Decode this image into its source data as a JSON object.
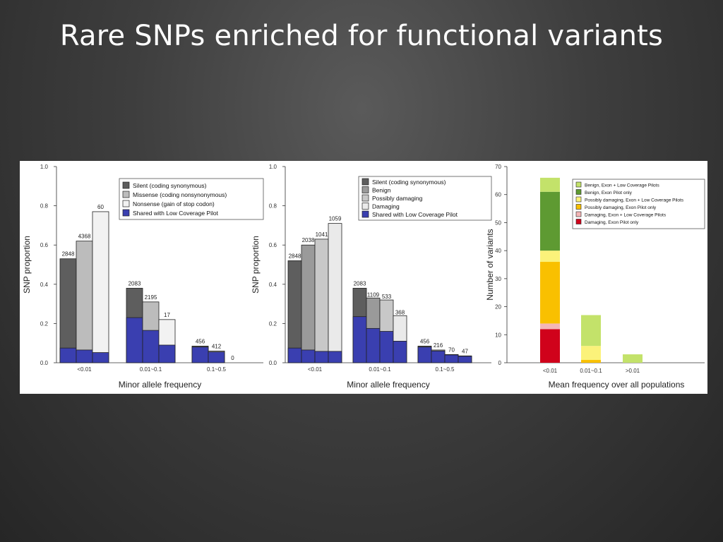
{
  "slide": {
    "title": "Rare SNPs enriched for functional variants"
  },
  "chart_data": [
    {
      "type": "bar",
      "ylabel": "SNP proportion",
      "xlabel": "Minor allele frequency",
      "ylim": [
        0,
        1.0
      ],
      "yticks": [
        "0.0",
        "0.2",
        "0.4",
        "0.6",
        "0.8",
        "1.0"
      ],
      "categories": [
        "<0.01",
        "0.01~0.1",
        "0.1~0.5"
      ],
      "series": [
        {
          "name": "Silent (coding synonymous)",
          "color": "#5e5e5e",
          "values": [
            0.53,
            0.38,
            0.085
          ],
          "shared": [
            0.075,
            0.23,
            0.08
          ],
          "labels": [
            "2848",
            "2083",
            "456"
          ]
        },
        {
          "name": "Missense (coding nonsynonymous)",
          "color": "#bcbcbc",
          "values": [
            0.62,
            0.31,
            0.06
          ],
          "shared": [
            0.065,
            0.165,
            0.055
          ],
          "labels": [
            "4368",
            "2195",
            "412"
          ]
        },
        {
          "name": "Nonsense (gain of stop codon)",
          "color": "#f2f2f2",
          "values": [
            0.77,
            0.22,
            0.0
          ],
          "shared": [
            0.052,
            0.09,
            0.0
          ],
          "labels": [
            "60",
            "17",
            "0"
          ]
        }
      ],
      "shared_series": {
        "name": "Shared with Low Coverage Pilot",
        "color": "#3a3fb0"
      },
      "legend": "top-right"
    },
    {
      "type": "bar",
      "ylabel": "SNP proportion",
      "xlabel": "Minor allele frequency",
      "ylim": [
        0,
        1.0
      ],
      "yticks": [
        "0.0",
        "0.2",
        "0.4",
        "0.6",
        "0.8",
        "1.0"
      ],
      "categories": [
        "<0.01",
        "0.01~0.1",
        "0.1~0.5"
      ],
      "series": [
        {
          "name": "Silent (coding synonymous)",
          "color": "#5e5e5e",
          "values": [
            0.52,
            0.38,
            0.085
          ],
          "shared": [
            0.075,
            0.235,
            0.08
          ],
          "labels": [
            "2848",
            "2083",
            "456"
          ]
        },
        {
          "name": "Benign",
          "color": "#9a9a9a",
          "values": [
            0.6,
            0.33,
            0.065
          ],
          "shared": [
            0.065,
            0.175,
            0.06
          ],
          "labels": [
            "2038",
            "1109",
            "216"
          ]
        },
        {
          "name": "Possibly damaging",
          "color": "#c8c8c8",
          "values": [
            0.63,
            0.32,
            0.042
          ],
          "shared": [
            0.058,
            0.16,
            0.04
          ],
          "labels": [
            "1041",
            "533",
            "70"
          ]
        },
        {
          "name": "Damaging",
          "color": "#eaeaea",
          "values": [
            0.71,
            0.24,
            0.035
          ],
          "shared": [
            0.058,
            0.11,
            0.033
          ],
          "labels": [
            "1059",
            "368",
            "47"
          ]
        }
      ],
      "shared_series": {
        "name": "Shared with Low Coverage Pilot",
        "color": "#3a3fb0"
      },
      "legend": "top-right"
    },
    {
      "type": "bar",
      "stacked": true,
      "ylabel": "Number of variants",
      "xlabel": "Mean frequency over all populations",
      "ylim": [
        0,
        70
      ],
      "yticks": [
        "0",
        "10",
        "20",
        "30",
        "40",
        "50",
        "60",
        "70"
      ],
      "categories": [
        "<0.01",
        "0.01~0.1",
        ">0.01"
      ],
      "series": [
        {
          "name": "Damaging, Exon Pilot only",
          "color": "#d0021b",
          "values": [
            12,
            0,
            0
          ]
        },
        {
          "name": "Damaging, Exon + Low Coverage Pilots",
          "color": "#f4b6b6",
          "values": [
            2,
            0,
            0
          ]
        },
        {
          "name": "Possibly damaging, Exon Pilot only",
          "color": "#f9c000",
          "values": [
            22,
            1,
            0
          ]
        },
        {
          "name": "Possibly damaging, Exon + Low Coverage Pilots",
          "color": "#fbf27a",
          "values": [
            4,
            5,
            0
          ]
        },
        {
          "name": "Benign, Exon Pilot only",
          "color": "#5e9a32",
          "values": [
            21,
            0,
            0
          ]
        },
        {
          "name": "Benign, Exon + Low Coverage Pilots",
          "color": "#c3e26a",
          "values": [
            5,
            11,
            3
          ]
        }
      ],
      "legend_order": [
        "Benign, Exon + Low Coverage Pilots",
        "Benign, Exon Pilot only",
        "Possibly damaging, Exon + Low Coverage Pilots",
        "Possibly damaging, Exon Pilot only",
        "Damaging, Exon + Low Coverage Pilots",
        "Damaging, Exon Pilot only"
      ],
      "legend": "top-right"
    }
  ]
}
